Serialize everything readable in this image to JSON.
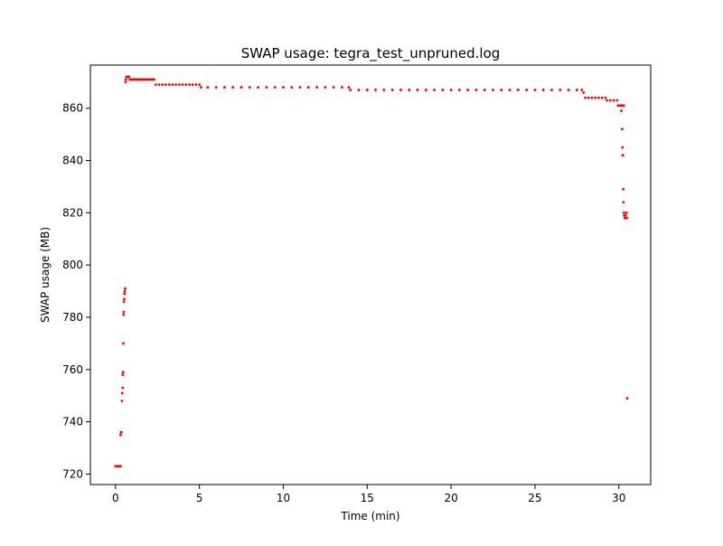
{
  "chart_data": {
    "type": "scatter",
    "title": "SWAP usage: tegra_test_unpruned.log",
    "xlabel": "Time (min)",
    "ylabel": "SWAP usage (MB)",
    "xlim": [
      -1.5,
      31.9
    ],
    "ylim": [
      716,
      876.5
    ],
    "xticks": [
      0,
      5,
      10,
      15,
      20,
      25,
      30
    ],
    "yticks": [
      720,
      740,
      760,
      780,
      800,
      820,
      840,
      860
    ],
    "grid": false,
    "legend": "none",
    "marker_color": "#ff0000",
    "series": [
      {
        "points": [
          [
            0.0,
            723
          ],
          [
            0.05,
            723
          ],
          [
            0.1,
            723
          ],
          [
            0.15,
            723
          ],
          [
            0.2,
            723
          ],
          [
            0.25,
            723
          ],
          [
            0.3,
            723
          ],
          [
            0.3,
            735
          ],
          [
            0.32,
            736
          ],
          [
            0.35,
            736
          ],
          [
            0.38,
            748
          ],
          [
            0.4,
            751
          ],
          [
            0.42,
            753
          ],
          [
            0.43,
            758
          ],
          [
            0.45,
            759
          ],
          [
            0.47,
            770
          ],
          [
            0.48,
            781
          ],
          [
            0.49,
            782
          ],
          [
            0.5,
            786
          ],
          [
            0.52,
            787
          ],
          [
            0.53,
            789
          ],
          [
            0.55,
            790
          ],
          [
            0.57,
            791
          ],
          [
            0.6,
            870
          ],
          [
            0.62,
            871
          ],
          [
            0.65,
            872
          ],
          [
            0.7,
            872
          ],
          [
            0.75,
            872
          ],
          [
            0.8,
            872
          ],
          [
            0.85,
            871
          ],
          [
            0.9,
            871
          ],
          [
            1.0,
            871
          ],
          [
            1.1,
            871
          ],
          [
            1.2,
            871
          ],
          [
            1.3,
            871
          ],
          [
            1.4,
            871
          ],
          [
            1.5,
            871
          ],
          [
            1.6,
            871
          ],
          [
            1.7,
            871
          ],
          [
            1.8,
            871
          ],
          [
            1.9,
            871
          ],
          [
            2.0,
            871
          ],
          [
            2.1,
            871
          ],
          [
            2.2,
            871
          ],
          [
            2.3,
            871
          ],
          [
            2.4,
            869
          ],
          [
            2.6,
            869
          ],
          [
            2.8,
            869
          ],
          [
            3.0,
            869
          ],
          [
            3.2,
            869
          ],
          [
            3.4,
            869
          ],
          [
            3.6,
            869
          ],
          [
            3.8,
            869
          ],
          [
            4.0,
            869
          ],
          [
            4.2,
            869
          ],
          [
            4.4,
            869
          ],
          [
            4.6,
            869
          ],
          [
            4.8,
            869
          ],
          [
            5.0,
            869
          ],
          [
            5.1,
            868
          ],
          [
            5.5,
            868
          ],
          [
            6.0,
            868
          ],
          [
            6.5,
            868
          ],
          [
            7.0,
            868
          ],
          [
            7.5,
            868
          ],
          [
            8.0,
            868
          ],
          [
            8.5,
            868
          ],
          [
            9.0,
            868
          ],
          [
            9.5,
            868
          ],
          [
            10.0,
            868
          ],
          [
            10.5,
            868
          ],
          [
            11.0,
            868
          ],
          [
            11.5,
            868
          ],
          [
            12.0,
            868
          ],
          [
            12.5,
            868
          ],
          [
            13.0,
            868
          ],
          [
            13.5,
            868
          ],
          [
            13.9,
            868
          ],
          [
            14.0,
            867
          ],
          [
            14.5,
            867
          ],
          [
            15.0,
            867
          ],
          [
            15.5,
            867
          ],
          [
            16.0,
            867
          ],
          [
            16.5,
            867
          ],
          [
            17.0,
            867
          ],
          [
            17.5,
            867
          ],
          [
            18.0,
            867
          ],
          [
            18.5,
            867
          ],
          [
            19.0,
            867
          ],
          [
            19.5,
            867
          ],
          [
            20.0,
            867
          ],
          [
            20.5,
            867
          ],
          [
            21.0,
            867
          ],
          [
            21.5,
            867
          ],
          [
            22.0,
            867
          ],
          [
            22.5,
            867
          ],
          [
            23.0,
            867
          ],
          [
            23.5,
            867
          ],
          [
            24.0,
            867
          ],
          [
            24.5,
            867
          ],
          [
            25.0,
            867
          ],
          [
            25.5,
            867
          ],
          [
            26.0,
            867
          ],
          [
            26.5,
            867
          ],
          [
            27.0,
            867
          ],
          [
            27.5,
            867
          ],
          [
            27.8,
            867
          ],
          [
            27.9,
            866
          ],
          [
            28.0,
            864
          ],
          [
            28.2,
            864
          ],
          [
            28.4,
            864
          ],
          [
            28.6,
            864
          ],
          [
            28.8,
            864
          ],
          [
            29.0,
            864
          ],
          [
            29.2,
            864
          ],
          [
            29.3,
            863
          ],
          [
            29.5,
            863
          ],
          [
            29.7,
            863
          ],
          [
            29.9,
            863
          ],
          [
            29.95,
            861
          ],
          [
            30.05,
            861
          ],
          [
            30.15,
            861
          ],
          [
            30.25,
            861
          ],
          [
            30.3,
            861
          ],
          [
            30.15,
            859
          ],
          [
            30.2,
            852
          ],
          [
            30.22,
            845
          ],
          [
            30.23,
            842
          ],
          [
            30.25,
            842
          ],
          [
            30.27,
            829
          ],
          [
            30.28,
            824
          ],
          [
            30.3,
            820
          ],
          [
            30.32,
            819
          ],
          [
            30.35,
            818
          ],
          [
            30.4,
            819
          ],
          [
            30.45,
            820
          ],
          [
            30.48,
            818
          ],
          [
            30.5,
            749
          ]
        ]
      }
    ]
  }
}
